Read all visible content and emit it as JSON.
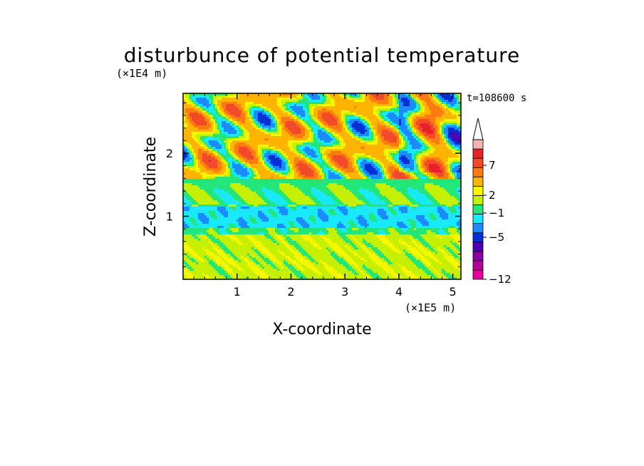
{
  "chart_data": {
    "type": "heatmap",
    "title": "disturbunce of potential temperature",
    "time_label": "t=108600 s",
    "xlabel": "X-coordinate",
    "ylabel": "Z-coordinate",
    "x_unit": "(×1E5 m)",
    "y_unit": "(×1E4 m)",
    "xlim": [
      0,
      5.15
    ],
    "ylim": [
      0,
      2.95
    ],
    "x_ticks": [
      1,
      2,
      3,
      4,
      5
    ],
    "y_ticks": [
      1,
      2
    ],
    "x_tick_labels": [
      "1",
      "2",
      "3",
      "4",
      "5"
    ],
    "y_tick_labels": [
      "1",
      "2"
    ],
    "colorbar": {
      "levels": [
        -12,
        -10,
        -7,
        -5,
        -3,
        -1,
        0,
        1,
        2,
        3,
        5,
        7,
        9,
        11
      ],
      "tick_labels": [
        "7",
        "2",
        "−1",
        "−5",
        "−12"
      ],
      "colors": [
        "#e6009e",
        "#b5009f",
        "#8a00a8",
        "#4e00b6",
        "#0030d8",
        "#1a8cff",
        "#19e9ff",
        "#22e67a",
        "#c5f000",
        "#f7f700",
        "#ffb400",
        "#ff7a10",
        "#f04a2a",
        "#e8202a",
        "#f8b4b4"
      ],
      "extend": "max"
    },
    "field_bands": [
      {
        "z_range": [
          0.0,
          0.7
        ],
        "dominant_value": 1.5,
        "description_value_label": "2"
      },
      {
        "z_range": [
          0.7,
          1.2
        ],
        "dominant_value": -1
      },
      {
        "z_range": [
          1.2,
          1.6
        ],
        "dominant_value": 1
      },
      {
        "z_range": [
          1.6,
          2.95
        ],
        "dominant_value": 3
      }
    ]
  }
}
